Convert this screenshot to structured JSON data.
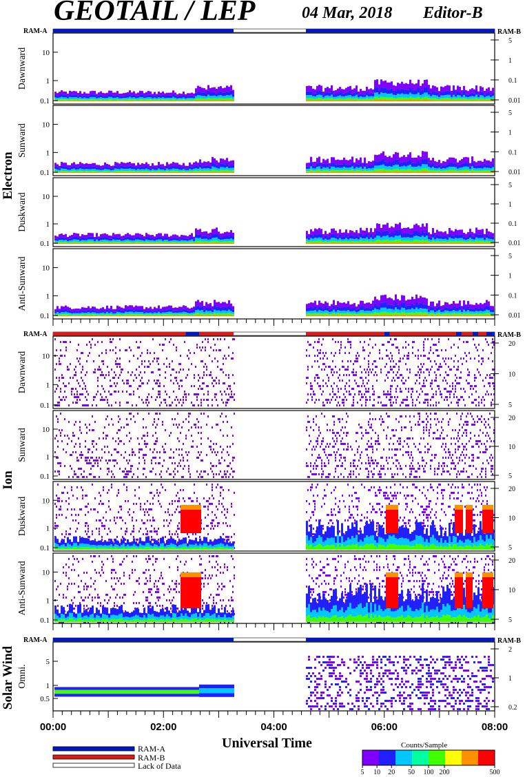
{
  "header": {
    "title": "GEOTAIL / LEP",
    "date": "04 Mar, 2018",
    "editor": "Editor-B"
  },
  "x_axis": {
    "title": "Universal Time",
    "ticks": [
      "00:00",
      "02:00",
      "04:00",
      "06:00",
      "08:00"
    ]
  },
  "legend": {
    "items": [
      {
        "label": "RAM-A",
        "color": "#0018c8"
      },
      {
        "label": "RAM-B",
        "color": "#e01818"
      },
      {
        "label": "Lack of Data",
        "color": "#ffffff"
      }
    ]
  },
  "colorbar": {
    "title": "Counts/Sample",
    "ticks": [
      "5",
      "10",
      "20",
      "50",
      "100",
      "200",
      "500"
    ]
  },
  "colors": {
    "ram_a": "#0018c8",
    "ram_b": "#e01818",
    "spectrum": [
      "#8000ff",
      "#2020ff",
      "#00c8ff",
      "#00ffa0",
      "#40ff00",
      "#ffff00",
      "#ff9000",
      "#ff0000"
    ]
  },
  "chart_data": {
    "type": "heatmap",
    "x_range_hours": [
      0,
      8
    ],
    "data_gap_hours": [
      3.27,
      4.58
    ],
    "groups": [
      {
        "name": "Electron",
        "ram_label_left": "RAM-A",
        "ram_label_right": "RAM-B",
        "ram_bar": [
          {
            "from": 0,
            "to": 3.27,
            "mode": "A"
          },
          {
            "from": 3.27,
            "to": 4.58,
            "mode": "none"
          },
          {
            "from": 4.58,
            "to": 8,
            "mode": "A"
          }
        ],
        "panels": [
          {
            "label": "Dawnward",
            "left_ticks": [
              "10",
              "1",
              "0.1"
            ],
            "right_ticks": [
              "5",
              "1",
              "0.1",
              "0.01"
            ]
          },
          {
            "label": "Sunward",
            "left_ticks": [
              "10",
              "1",
              "0.1"
            ],
            "right_ticks": [
              "5",
              "1",
              "0.1",
              "0.01"
            ]
          },
          {
            "label": "Duskward",
            "left_ticks": [
              "10",
              "1",
              "0.1"
            ],
            "right_ticks": [
              "5",
              "1",
              "0.1",
              "0.01"
            ]
          },
          {
            "label": "Anti-Sunward",
            "left_ticks": [
              "10",
              "1",
              "0.1"
            ],
            "right_ticks": [
              "5",
              "1",
              "0.1",
              "0.01"
            ]
          }
        ]
      },
      {
        "name": "Ion",
        "ram_label_left": "RAM-A",
        "ram_label_right": "RAM-B",
        "ram_bar": [
          {
            "from": 0,
            "to": 2.4,
            "mode": "B"
          },
          {
            "from": 2.4,
            "to": 2.65,
            "mode": "A"
          },
          {
            "from": 2.65,
            "to": 3.27,
            "mode": "B"
          },
          {
            "from": 3.27,
            "to": 4.58,
            "mode": "none"
          },
          {
            "from": 4.58,
            "to": 6.0,
            "mode": "B"
          },
          {
            "from": 6.0,
            "to": 6.1,
            "mode": "A"
          },
          {
            "from": 6.1,
            "to": 7.3,
            "mode": "B"
          },
          {
            "from": 7.3,
            "to": 7.4,
            "mode": "A"
          },
          {
            "from": 7.4,
            "to": 7.6,
            "mode": "B"
          },
          {
            "from": 7.6,
            "to": 7.7,
            "mode": "A"
          },
          {
            "from": 7.7,
            "to": 7.85,
            "mode": "B"
          },
          {
            "from": 7.85,
            "to": 8,
            "mode": "A"
          }
        ],
        "panels": [
          {
            "label": "Dawnward",
            "left_ticks": [
              "10",
              "1",
              "0.1"
            ],
            "right_ticks": [
              "20",
              "10",
              "5"
            ]
          },
          {
            "label": "Sunward",
            "left_ticks": [
              "10",
              "1",
              "0.1"
            ],
            "right_ticks": [
              "20",
              "10",
              "5"
            ]
          },
          {
            "label": "Duskward",
            "left_ticks": [
              "10",
              "1",
              "0.1"
            ],
            "right_ticks": [
              "20",
              "10",
              "5"
            ]
          },
          {
            "label": "Anti-Sunward",
            "left_ticks": [
              "10",
              "1",
              "0.1"
            ],
            "right_ticks": [
              "20",
              "10",
              "5"
            ]
          }
        ]
      },
      {
        "name": "Solar Wind",
        "ram_label_left": "RAM-A",
        "ram_label_right": "RAM-B",
        "ram_bar": [
          {
            "from": 0,
            "to": 3.27,
            "mode": "A"
          },
          {
            "from": 3.27,
            "to": 4.58,
            "mode": "none"
          },
          {
            "from": 4.58,
            "to": 8,
            "mode": "A"
          }
        ],
        "panels": [
          {
            "label": "Omni.",
            "left_ticks": [
              "5",
              "1",
              "0.5"
            ],
            "right_ticks": [
              "2",
              "1",
              "0.2"
            ]
          }
        ]
      }
    ]
  }
}
